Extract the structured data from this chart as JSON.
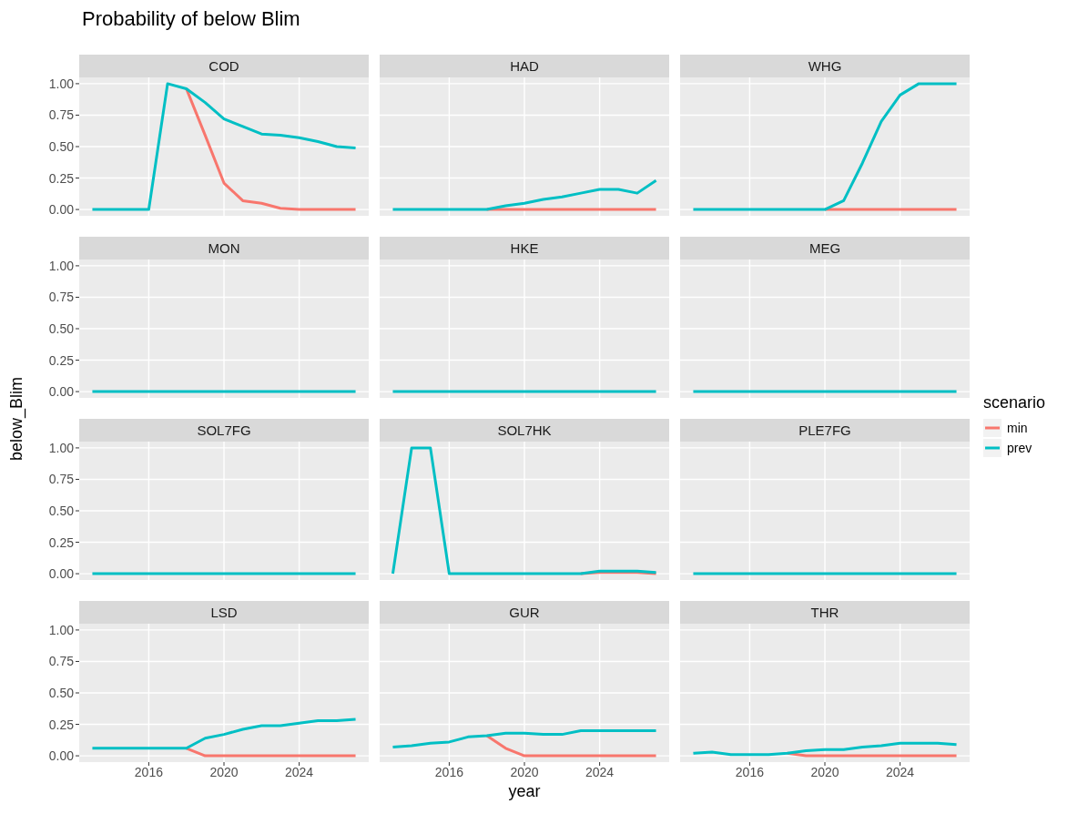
{
  "chart_data": [
    {
      "type": "line",
      "title": "COD",
      "annotations": [
        "Probability of below Blim"
      ],
      "tick_labels": "y",
      "grid": true,
      "x": [
        2013,
        2014,
        2015,
        2016,
        2017,
        2018,
        2019,
        2020,
        2021,
        2022,
        2023,
        2024,
        2025,
        2026,
        2027
      ],
      "xlim": [
        2012.3,
        2027.7
      ],
      "xticks": [
        2016,
        2020,
        2024
      ],
      "ylim": [
        -0.05,
        1.05
      ],
      "yticks": [
        {
          "value": 0,
          "label": "0.00"
        },
        {
          "value": 0.25,
          "label": "0.25"
        },
        {
          "value": 0.5,
          "label": "0.50"
        },
        {
          "value": 0.75,
          "label": "0.75"
        },
        {
          "value": 1,
          "label": "1.00"
        }
      ],
      "series": [
        {
          "color": "#f8766d",
          "values": [
            null,
            null,
            null,
            null,
            null,
            0.96,
            0.59,
            0.21,
            0.07,
            0.05,
            0.01,
            0,
            0,
            0,
            0
          ]
        },
        {
          "color": "#00bfc4",
          "values": [
            0,
            0,
            0,
            0,
            1,
            0.96,
            0.85,
            0.72,
            0.66,
            0.6,
            0.59,
            0.57,
            0.54,
            0.5,
            0.49
          ]
        }
      ]
    },
    {
      "type": "line",
      "title": "HAD",
      "tick_labels": false,
      "grid": true,
      "x": [
        2013,
        2014,
        2015,
        2016,
        2017,
        2018,
        2019,
        2020,
        2021,
        2022,
        2023,
        2024,
        2025,
        2026,
        2027
      ],
      "xlim": [
        2012.3,
        2027.7
      ],
      "xticks": [
        2016,
        2020,
        2024
      ],
      "ylim": [
        -0.05,
        1.05
      ],
      "yticks": [
        0,
        0.25,
        0.5,
        0.75,
        1
      ],
      "series": [
        {
          "color": "#f8766d",
          "values": [
            null,
            null,
            null,
            null,
            null,
            0,
            0,
            0,
            0,
            0,
            0,
            0,
            0,
            0,
            0
          ]
        },
        {
          "color": "#00bfc4",
          "values": [
            0,
            0,
            0,
            0,
            0,
            0,
            0.03,
            0.05,
            0.08,
            0.1,
            0.13,
            0.16,
            0.16,
            0.13,
            0.23
          ]
        }
      ]
    },
    {
      "type": "line",
      "title": "WHG",
      "tick_labels": false,
      "grid": true,
      "x": [
        2013,
        2014,
        2015,
        2016,
        2017,
        2018,
        2019,
        2020,
        2021,
        2022,
        2023,
        2024,
        2025,
        2026,
        2027
      ],
      "xlim": [
        2012.3,
        2027.7
      ],
      "xticks": [
        2016,
        2020,
        2024
      ],
      "ylim": [
        -0.05,
        1.05
      ],
      "yticks": [
        0,
        0.25,
        0.5,
        0.75,
        1
      ],
      "series": [
        {
          "color": "#f8766d",
          "values": [
            null,
            null,
            null,
            null,
            null,
            null,
            null,
            0,
            0,
            0,
            0,
            0,
            0,
            0,
            0
          ]
        },
        {
          "color": "#00bfc4",
          "values": [
            0,
            0,
            0,
            0,
            0,
            0,
            0,
            0,
            0.07,
            0.37,
            0.7,
            0.91,
            1,
            1,
            1
          ]
        }
      ]
    },
    {
      "type": "line",
      "title": "MON",
      "tick_labels": "y",
      "grid": true,
      "x": [
        2013,
        2014,
        2015,
        2016,
        2017,
        2018,
        2019,
        2020,
        2021,
        2022,
        2023,
        2024,
        2025,
        2026,
        2027
      ],
      "xlim": [
        2012.3,
        2027.7
      ],
      "xticks": [
        2016,
        2020,
        2024
      ],
      "ylim": [
        -0.05,
        1.05
      ],
      "yticks": [
        {
          "value": 0,
          "label": "0.00"
        },
        {
          "value": 0.25,
          "label": "0.25"
        },
        {
          "value": 0.5,
          "label": "0.50"
        },
        {
          "value": 0.75,
          "label": "0.75"
        },
        {
          "value": 1,
          "label": "1.00"
        }
      ],
      "series": [
        {
          "color": "#00bfc4",
          "values": [
            0,
            0,
            0,
            0,
            0,
            0,
            0,
            0,
            0,
            0,
            0,
            0,
            0,
            0,
            0
          ]
        }
      ]
    },
    {
      "type": "line",
      "title": "HKE",
      "tick_labels": false,
      "grid": true,
      "x": [
        2013,
        2014,
        2015,
        2016,
        2017,
        2018,
        2019,
        2020,
        2021,
        2022,
        2023,
        2024,
        2025,
        2026,
        2027
      ],
      "xlim": [
        2012.3,
        2027.7
      ],
      "xticks": [
        2016,
        2020,
        2024
      ],
      "ylim": [
        -0.05,
        1.05
      ],
      "yticks": [
        0,
        0.25,
        0.5,
        0.75,
        1
      ],
      "series": [
        {
          "color": "#00bfc4",
          "values": [
            0,
            0,
            0,
            0,
            0,
            0,
            0,
            0,
            0,
            0,
            0,
            0,
            0,
            0,
            0
          ]
        }
      ]
    },
    {
      "type": "line",
      "title": "MEG",
      "tick_labels": false,
      "grid": true,
      "x": [
        2013,
        2014,
        2015,
        2016,
        2017,
        2018,
        2019,
        2020,
        2021,
        2022,
        2023,
        2024,
        2025,
        2026,
        2027
      ],
      "xlim": [
        2012.3,
        2027.7
      ],
      "xticks": [
        2016,
        2020,
        2024
      ],
      "ylim": [
        -0.05,
        1.05
      ],
      "yticks": [
        0,
        0.25,
        0.5,
        0.75,
        1
      ],
      "series": [
        {
          "color": "#00bfc4",
          "values": [
            0,
            0,
            0,
            0,
            0,
            0,
            0,
            0,
            0,
            0,
            0,
            0,
            0,
            0,
            0
          ]
        }
      ]
    },
    {
      "type": "line",
      "title": "SOL7FG",
      "ylabel": "below_Blim",
      "tick_labels": "y",
      "grid": true,
      "x": [
        2013,
        2014,
        2015,
        2016,
        2017,
        2018,
        2019,
        2020,
        2021,
        2022,
        2023,
        2024,
        2025,
        2026,
        2027
      ],
      "xlim": [
        2012.3,
        2027.7
      ],
      "xticks": [
        2016,
        2020,
        2024
      ],
      "ylim": [
        -0.05,
        1.05
      ],
      "yticks": [
        {
          "value": 0,
          "label": "0.00"
        },
        {
          "value": 0.25,
          "label": "0.25"
        },
        {
          "value": 0.5,
          "label": "0.50"
        },
        {
          "value": 0.75,
          "label": "0.75"
        },
        {
          "value": 1,
          "label": "1.00"
        }
      ],
      "series": [
        {
          "color": "#00bfc4",
          "values": [
            0,
            0,
            0,
            0,
            0,
            0,
            0,
            0,
            0,
            0,
            0,
            0,
            0,
            0,
            0
          ]
        }
      ]
    },
    {
      "type": "line",
      "title": "SOL7HK",
      "tick_labels": false,
      "grid": true,
      "x": [
        2013,
        2014,
        2015,
        2016,
        2017,
        2018,
        2019,
        2020,
        2021,
        2022,
        2023,
        2024,
        2025,
        2026,
        2027
      ],
      "xlim": [
        2012.3,
        2027.7
      ],
      "xticks": [
        2016,
        2020,
        2024
      ],
      "ylim": [
        -0.05,
        1.05
      ],
      "yticks": [
        0,
        0.25,
        0.5,
        0.75,
        1
      ],
      "series": [
        {
          "color": "#f8766d",
          "values": [
            null,
            null,
            null,
            null,
            null,
            null,
            null,
            null,
            null,
            null,
            0,
            0.01,
            0.01,
            0.01,
            0
          ]
        },
        {
          "color": "#00bfc4",
          "values": [
            0,
            1,
            1,
            0,
            0,
            0,
            0,
            0,
            0,
            0,
            0,
            0.02,
            0.02,
            0.02,
            0.01
          ]
        }
      ]
    },
    {
      "type": "line",
      "title": "PLE7FG",
      "legend": "right",
      "legend_title": "scenario",
      "tick_labels": false,
      "grid": true,
      "x": [
        2013,
        2014,
        2015,
        2016,
        2017,
        2018,
        2019,
        2020,
        2021,
        2022,
        2023,
        2024,
        2025,
        2026,
        2027
      ],
      "xlim": [
        2012.3,
        2027.7
      ],
      "xticks": [
        2016,
        2020,
        2024
      ],
      "ylim": [
        -0.05,
        1.05
      ],
      "yticks": [
        0,
        0.25,
        0.5,
        0.75,
        1
      ],
      "series": [
        {
          "name": "min",
          "color": "#f8766d",
          "values": [
            null,
            null,
            null,
            null,
            null,
            null,
            null,
            null,
            null,
            null,
            null,
            null,
            null,
            null,
            null
          ]
        },
        {
          "name": "prev",
          "color": "#00bfc4",
          "values": [
            0,
            0,
            0,
            0,
            0,
            0,
            0,
            0,
            0,
            0,
            0,
            0,
            0,
            0,
            0
          ]
        }
      ]
    },
    {
      "type": "line",
      "title": "LSD",
      "grid": true,
      "x": [
        2013,
        2014,
        2015,
        2016,
        2017,
        2018,
        2019,
        2020,
        2021,
        2022,
        2023,
        2024,
        2025,
        2026,
        2027
      ],
      "xlim": [
        2012.3,
        2027.7
      ],
      "xticks": [
        2016,
        2020,
        2024
      ],
      "ylim": [
        -0.05,
        1.05
      ],
      "yticks": [
        {
          "value": 0,
          "label": "0.00"
        },
        {
          "value": 0.25,
          "label": "0.25"
        },
        {
          "value": 0.5,
          "label": "0.50"
        },
        {
          "value": 0.75,
          "label": "0.75"
        },
        {
          "value": 1,
          "label": "1.00"
        }
      ],
      "series": [
        {
          "color": "#f8766d",
          "values": [
            null,
            null,
            null,
            null,
            null,
            0.06,
            0,
            0,
            0,
            0,
            0,
            0,
            0,
            0,
            0
          ]
        },
        {
          "color": "#00bfc4",
          "values": [
            0.06,
            0.06,
            0.06,
            0.06,
            0.06,
            0.06,
            0.14,
            0.17,
            0.21,
            0.24,
            0.24,
            0.26,
            0.28,
            0.28,
            0.29
          ]
        }
      ]
    },
    {
      "type": "line",
      "title": "GUR",
      "xlabel": "year",
      "tick_labels": "x",
      "grid": true,
      "x": [
        2013,
        2014,
        2015,
        2016,
        2017,
        2018,
        2019,
        2020,
        2021,
        2022,
        2023,
        2024,
        2025,
        2026,
        2027
      ],
      "xlim": [
        2012.3,
        2027.7
      ],
      "xticks": [
        2016,
        2020,
        2024
      ],
      "ylim": [
        -0.05,
        1.05
      ],
      "yticks": [
        0,
        0.25,
        0.5,
        0.75,
        1
      ],
      "series": [
        {
          "color": "#f8766d",
          "values": [
            null,
            null,
            null,
            null,
            null,
            0.16,
            0.06,
            0,
            0,
            0,
            0,
            0,
            0,
            0,
            0
          ]
        },
        {
          "color": "#00bfc4",
          "values": [
            0.07,
            0.08,
            0.1,
            0.11,
            0.15,
            0.16,
            0.18,
            0.18,
            0.17,
            0.17,
            0.2,
            0.2,
            0.2,
            0.2,
            0.2
          ]
        }
      ]
    },
    {
      "type": "line",
      "title": "THR",
      "tick_labels": "x",
      "grid": true,
      "x": [
        2013,
        2014,
        2015,
        2016,
        2017,
        2018,
        2019,
        2020,
        2021,
        2022,
        2023,
        2024,
        2025,
        2026,
        2027
      ],
      "xlim": [
        2012.3,
        2027.7
      ],
      "xticks": [
        2016,
        2020,
        2024
      ],
      "ylim": [
        -0.05,
        1.05
      ],
      "yticks": [
        0,
        0.25,
        0.5,
        0.75,
        1
      ],
      "series": [
        {
          "color": "#f8766d",
          "values": [
            null,
            null,
            null,
            null,
            null,
            0.02,
            0,
            0,
            0,
            0,
            0,
            0,
            0,
            0,
            0
          ]
        },
        {
          "color": "#00bfc4",
          "values": [
            0.02,
            0.03,
            0.01,
            0.01,
            0.01,
            0.02,
            0.04,
            0.05,
            0.05,
            0.07,
            0.08,
            0.1,
            0.1,
            0.1,
            0.09
          ]
        }
      ]
    }
  ]
}
